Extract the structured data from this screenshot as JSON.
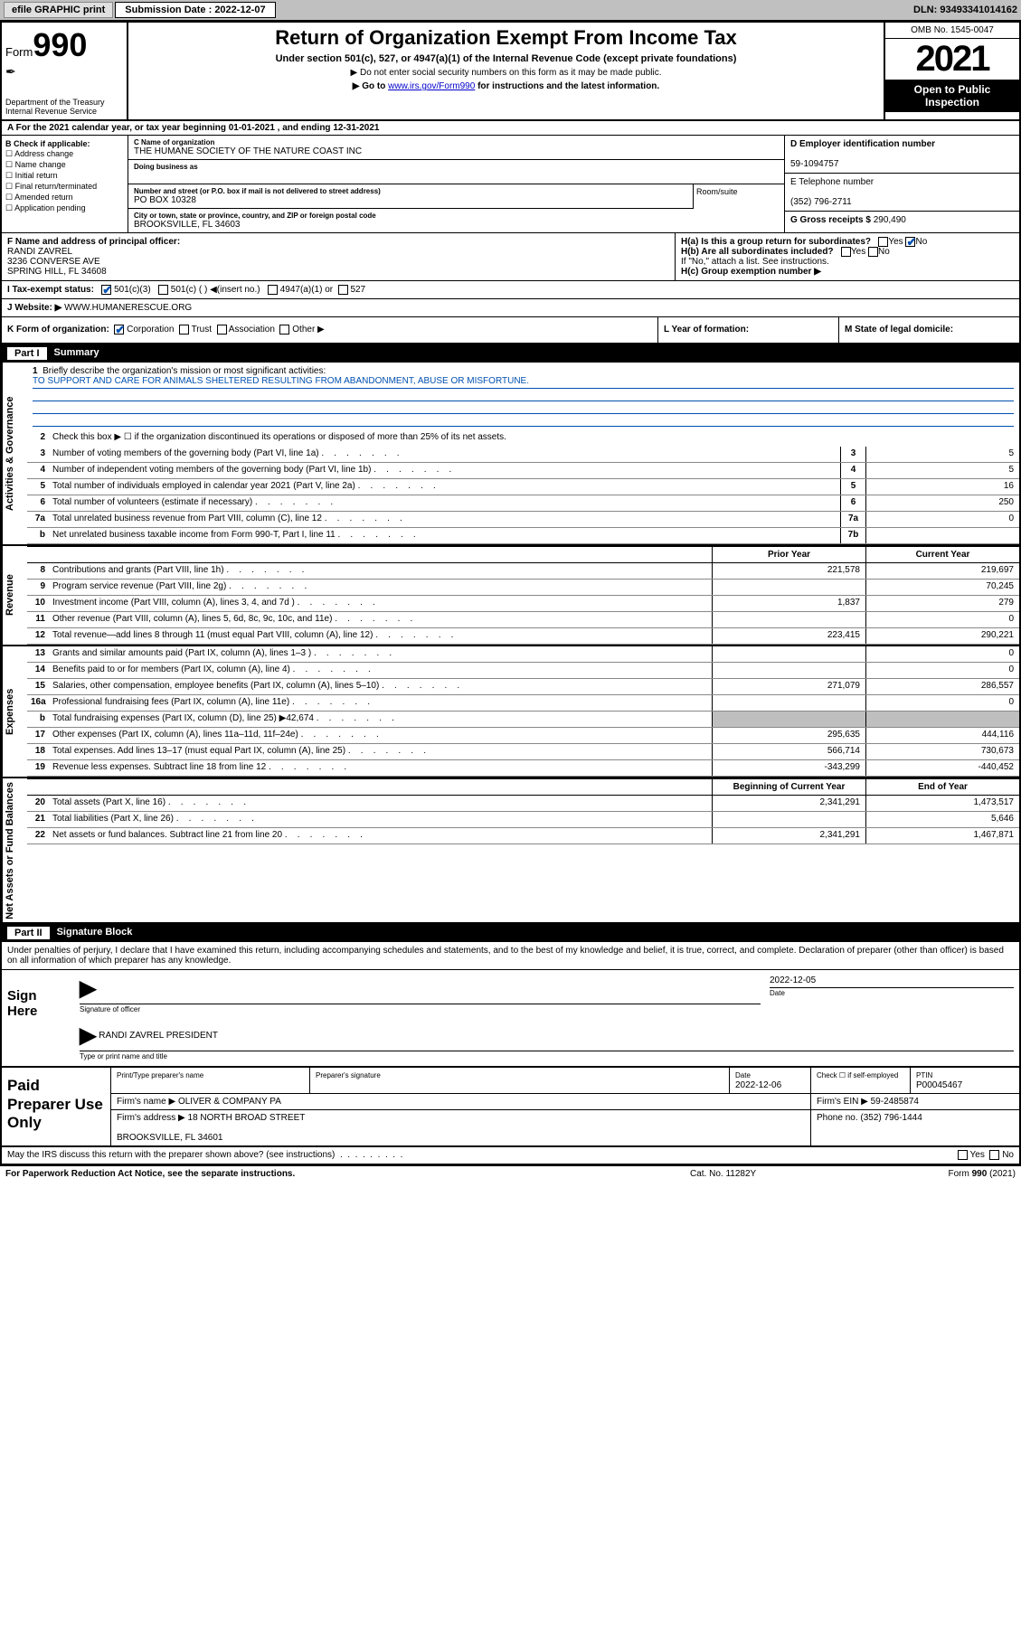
{
  "topbar": {
    "efile": "efile GRAPHIC print",
    "subdate_label": "Submission Date : 2022-12-07",
    "dln": "DLN: 93493341014162"
  },
  "header": {
    "form_prefix": "Form",
    "form_no": "990",
    "dept": "Department of the Treasury",
    "irs": "Internal Revenue Service",
    "title": "Return of Organization Exempt From Income Tax",
    "subtitle": "Under section 501(c), 527, or 4947(a)(1) of the Internal Revenue Code (except private foundations)",
    "note1": "▶ Do not enter social security numbers on this form as it may be made public.",
    "note2_pre": "▶ Go to ",
    "note2_link": "www.irs.gov/Form990",
    "note2_post": " for instructions and the latest information.",
    "omb": "OMB No. 1545-0047",
    "year": "2021",
    "public": "Open to Public Inspection"
  },
  "rowA": "A For the 2021 calendar year, or tax year beginning 01-01-2021   , and ending 12-31-2021",
  "secB": {
    "checkLabel": "B Check if applicable:",
    "options": [
      "Address change",
      "Name change",
      "Initial return",
      "Final return/terminated",
      "Amended return",
      "Application pending"
    ],
    "c_name_lbl": "C Name of organization",
    "c_name": "THE HUMANE SOCIETY OF THE NATURE COAST INC",
    "dba_lbl": "Doing business as",
    "addr_lbl": "Number and street (or P.O. box if mail is not delivered to street address)",
    "addr": "PO BOX 10328",
    "room_lbl": "Room/suite",
    "city_lbl": "City or town, state or province, country, and ZIP or foreign postal code",
    "city": "BROOKSVILLE, FL  34603",
    "d_lbl": "D Employer identification number",
    "d_val": "59-1094757",
    "e_lbl": "E Telephone number",
    "e_val": "(352) 796-2711",
    "g_lbl": "G Gross receipts $",
    "g_val": "290,490"
  },
  "secF": {
    "f_lbl": "F Name and address of principal officer:",
    "f_name": "RANDI ZAVREL",
    "f_addr1": "3236 CONVERSE AVE",
    "f_addr2": "SPRING HILL, FL  34608",
    "ha": "H(a)  Is this a group return for subordinates?",
    "hb": "H(b)  Are all subordinates included?",
    "hb_note": "If \"No,\" attach a list. See instructions.",
    "hc": "H(c)  Group exemption number ▶",
    "yes": "Yes",
    "no": "No"
  },
  "rowI": {
    "label": "I   Tax-exempt status:",
    "o1": "501(c)(3)",
    "o2": "501(c) (  ) ◀(insert no.)",
    "o3": "4947(a)(1) or",
    "o4": "527"
  },
  "rowJ": {
    "label": "J   Website: ▶",
    "val": "WWW.HUMANERESCUE.ORG"
  },
  "rowK": {
    "label": "K Form of organization:",
    "corp": "Corporation",
    "trust": "Trust",
    "assoc": "Association",
    "other": "Other ▶",
    "l": "L Year of formation:",
    "m": "M State of legal domicile:"
  },
  "part1": {
    "hdr": "Part I",
    "title": "Summary",
    "sections": {
      "gov": "Activities & Governance",
      "rev": "Revenue",
      "exp": "Expenses",
      "net": "Net Assets or Fund Balances"
    },
    "line1_lbl": "Briefly describe the organization's mission or most significant activities:",
    "mission": "TO SUPPORT AND CARE FOR ANIMALS SHELTERED RESULTING FROM ABANDONMENT, ABUSE OR MISFORTUNE.",
    "line2": "Check this box ▶ ☐  if the organization discontinued its operations or disposed of more than 25% of its net assets.",
    "lines": [
      {
        "n": "3",
        "t": "Number of voting members of the governing body (Part VI, line 1a)",
        "box": "3",
        "v": "5"
      },
      {
        "n": "4",
        "t": "Number of independent voting members of the governing body (Part VI, line 1b)",
        "box": "4",
        "v": "5"
      },
      {
        "n": "5",
        "t": "Total number of individuals employed in calendar year 2021 (Part V, line 2a)",
        "box": "5",
        "v": "16"
      },
      {
        "n": "6",
        "t": "Total number of volunteers (estimate if necessary)",
        "box": "6",
        "v": "250"
      },
      {
        "n": "7a",
        "t": "Total unrelated business revenue from Part VIII, column (C), line 12",
        "box": "7a",
        "v": "0"
      },
      {
        "n": "b",
        "t": "Net unrelated business taxable income from Form 990-T, Part I, line 11",
        "box": "7b",
        "v": ""
      }
    ],
    "col_prior": "Prior Year",
    "col_curr": "Current Year",
    "rev": [
      {
        "n": "8",
        "t": "Contributions and grants (Part VIII, line 1h)",
        "p": "221,578",
        "c": "219,697"
      },
      {
        "n": "9",
        "t": "Program service revenue (Part VIII, line 2g)",
        "p": "",
        "c": "70,245"
      },
      {
        "n": "10",
        "t": "Investment income (Part VIII, column (A), lines 3, 4, and 7d )",
        "p": "1,837",
        "c": "279"
      },
      {
        "n": "11",
        "t": "Other revenue (Part VIII, column (A), lines 5, 6d, 8c, 9c, 10c, and 11e)",
        "p": "",
        "c": "0"
      },
      {
        "n": "12",
        "t": "Total revenue—add lines 8 through 11 (must equal Part VIII, column (A), line 12)",
        "p": "223,415",
        "c": "290,221"
      }
    ],
    "exp": [
      {
        "n": "13",
        "t": "Grants and similar amounts paid (Part IX, column (A), lines 1–3 )",
        "p": "",
        "c": "0"
      },
      {
        "n": "14",
        "t": "Benefits paid to or for members (Part IX, column (A), line 4)",
        "p": "",
        "c": "0"
      },
      {
        "n": "15",
        "t": "Salaries, other compensation, employee benefits (Part IX, column (A), lines 5–10)",
        "p": "271,079",
        "c": "286,557"
      },
      {
        "n": "16a",
        "t": "Professional fundraising fees (Part IX, column (A), line 11e)",
        "p": "",
        "c": "0"
      },
      {
        "n": "b",
        "t": "Total fundraising expenses (Part IX, column (D), line 25) ▶42,674",
        "p": "sh",
        "c": "sh"
      },
      {
        "n": "17",
        "t": "Other expenses (Part IX, column (A), lines 11a–11d, 11f–24e)",
        "p": "295,635",
        "c": "444,116"
      },
      {
        "n": "18",
        "t": "Total expenses. Add lines 13–17 (must equal Part IX, column (A), line 25)",
        "p": "566,714",
        "c": "730,673"
      },
      {
        "n": "19",
        "t": "Revenue less expenses. Subtract line 18 from line 12",
        "p": "-343,299",
        "c": "-440,452"
      }
    ],
    "col_beg": "Beginning of Current Year",
    "col_end": "End of Year",
    "net": [
      {
        "n": "20",
        "t": "Total assets (Part X, line 16)",
        "p": "2,341,291",
        "c": "1,473,517"
      },
      {
        "n": "21",
        "t": "Total liabilities (Part X, line 26)",
        "p": "",
        "c": "5,646"
      },
      {
        "n": "22",
        "t": "Net assets or fund balances. Subtract line 21 from line 20",
        "p": "2,341,291",
        "c": "1,467,871"
      }
    ]
  },
  "part2": {
    "hdr": "Part II",
    "title": "Signature Block",
    "note": "Under penalties of perjury, I declare that I have examined this return, including accompanying schedules and statements, and to the best of my knowledge and belief, it is true, correct, and complete. Declaration of preparer (other than officer) is based on all information of which preparer has any knowledge.",
    "sign_here": "Sign Here",
    "sig_of": "Signature of officer",
    "date_lbl": "Date",
    "date": "2022-12-05",
    "name": "RANDI ZAVREL PRESIDENT",
    "name_lbl": "Type or print name and title",
    "paid": "Paid Preparer Use Only",
    "pt_name_lbl": "Print/Type preparer's name",
    "pt_sig_lbl": "Preparer's signature",
    "pt_date_lbl": "Date",
    "pt_date": "2022-12-06",
    "pt_check": "Check ☐ if self-employed",
    "ptin_lbl": "PTIN",
    "ptin": "P00045467",
    "firm_name_lbl": "Firm's name    ▶",
    "firm_name": "OLIVER & COMPANY PA",
    "firm_ein_lbl": "Firm's EIN ▶",
    "firm_ein": "59-2485874",
    "firm_addr_lbl": "Firm's address ▶",
    "firm_addr1": "18 NORTH BROAD STREET",
    "firm_addr2": "BROOKSVILLE, FL  34601",
    "phone_lbl": "Phone no.",
    "phone": "(352) 796-1444",
    "may": "May the IRS discuss this return with the preparer shown above? (see instructions)"
  },
  "footer": {
    "pra": "For Paperwork Reduction Act Notice, see the separate instructions.",
    "cat": "Cat. No. 11282Y",
    "form": "Form 990 (2021)"
  }
}
